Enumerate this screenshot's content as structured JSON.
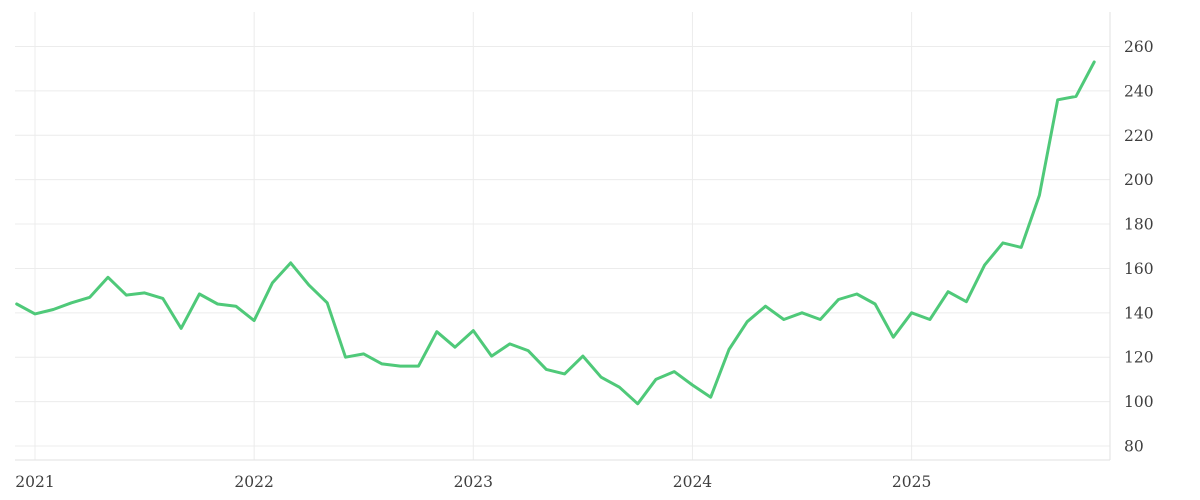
{
  "chart_data": {
    "type": "line",
    "title": "",
    "xlabel": "",
    "ylabel": "",
    "legend": "none",
    "grid": true,
    "y_axis": {
      "position": "right",
      "ticks": [
        80,
        100,
        120,
        140,
        160,
        180,
        200,
        220,
        240,
        260
      ],
      "ylim": [
        74,
        275
      ]
    },
    "x_axis": {
      "position": "bottom",
      "tick_labels": [
        "2021",
        "2022",
        "2023",
        "2024",
        "2025"
      ],
      "tick_years": [
        2021,
        2022,
        2023,
        2024,
        2025
      ]
    },
    "series": [
      {
        "name": "price",
        "points": [
          [
            "2020-12",
            144
          ],
          [
            "2021-01",
            139.5
          ],
          [
            "2021-02",
            141.5
          ],
          [
            "2021-03",
            144.5
          ],
          [
            "2021-04",
            147
          ],
          [
            "2021-05",
            156
          ],
          [
            "2021-06",
            148
          ],
          [
            "2021-07",
            149
          ],
          [
            "2021-08",
            146.5
          ],
          [
            "2021-09",
            133
          ],
          [
            "2021-10",
            148.5
          ],
          [
            "2021-11",
            144
          ],
          [
            "2021-12",
            143
          ],
          [
            "2022-01",
            136.5
          ],
          [
            "2022-02",
            153.5
          ],
          [
            "2022-03",
            162.5
          ],
          [
            "2022-04",
            152.5
          ],
          [
            "2022-05",
            144.5
          ],
          [
            "2022-06",
            120
          ],
          [
            "2022-07",
            121.5
          ],
          [
            "2022-08",
            117
          ],
          [
            "2022-09",
            116
          ],
          [
            "2022-10",
            116
          ],
          [
            "2022-11",
            131.5
          ],
          [
            "2022-12",
            124.5
          ],
          [
            "2023-01",
            132
          ],
          [
            "2023-02",
            120.5
          ],
          [
            "2023-03",
            126
          ],
          [
            "2023-04",
            123
          ],
          [
            "2023-05",
            114.5
          ],
          [
            "2023-06",
            112.5
          ],
          [
            "2023-07",
            120.5
          ],
          [
            "2023-08",
            111
          ],
          [
            "2023-09",
            106.5
          ],
          [
            "2023-10",
            99
          ],
          [
            "2023-11",
            110
          ],
          [
            "2023-12",
            113.5
          ],
          [
            "2024-01",
            107.5
          ],
          [
            "2024-02",
            102
          ],
          [
            "2024-03",
            123.5
          ],
          [
            "2024-04",
            136
          ],
          [
            "2024-05",
            143
          ],
          [
            "2024-06",
            137
          ],
          [
            "2024-07",
            140
          ],
          [
            "2024-08",
            137
          ],
          [
            "2024-09",
            146
          ],
          [
            "2024-10",
            148.5
          ],
          [
            "2024-11",
            144
          ],
          [
            "2024-12",
            129
          ],
          [
            "2025-01",
            140
          ],
          [
            "2025-02",
            137
          ],
          [
            "2025-03",
            149.5
          ],
          [
            "2025-04",
            145
          ],
          [
            "2025-05",
            161.5
          ],
          [
            "2025-06",
            171.5
          ],
          [
            "2025-07",
            169.5
          ],
          [
            "2025-08",
            193
          ],
          [
            "2025-09",
            236
          ],
          [
            "2025-10",
            237.5
          ],
          [
            "2025-11",
            253
          ]
        ]
      }
    ],
    "colors": {
      "line": "#4fc979",
      "grid": "#ececec",
      "axis": "#e2e2e2",
      "text": "#3f3f3f",
      "background": "#ffffff"
    }
  }
}
